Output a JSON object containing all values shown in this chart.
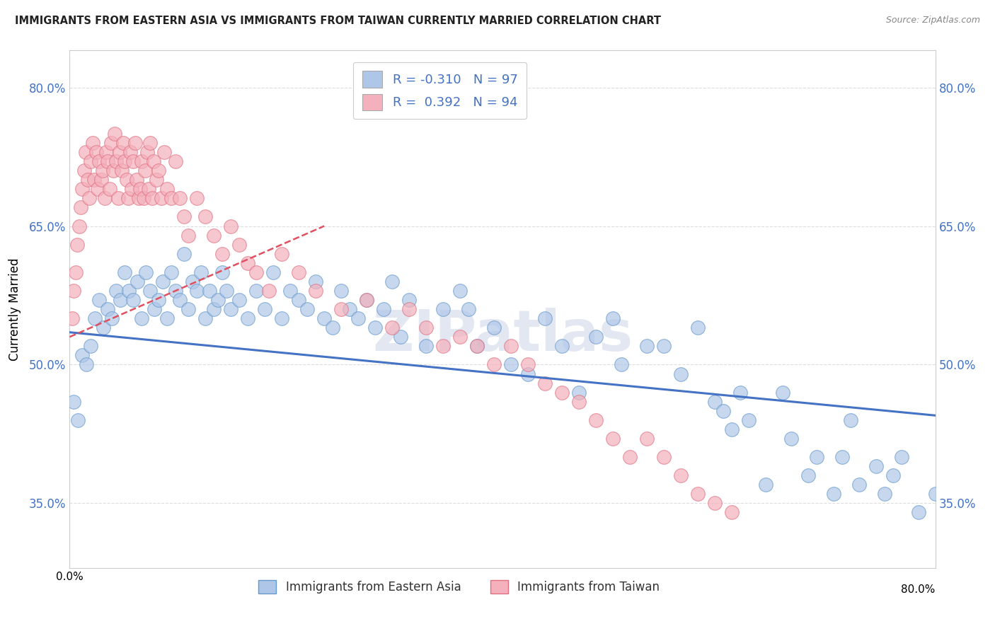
{
  "title": "IMMIGRANTS FROM EASTERN ASIA VS IMMIGRANTS FROM TAIWAN CURRENTLY MARRIED CORRELATION CHART",
  "source_text": "Source: ZipAtlas.com",
  "ylabel": "Currently Married",
  "legend_entries": [
    {
      "color": "#aec6e8",
      "edge_color": "#6699cc",
      "R": "-0.310",
      "N": "97"
    },
    {
      "color": "#f4b0bc",
      "edge_color": "#e07080",
      "R": " 0.392",
      "N": "94"
    }
  ],
  "bottom_legend": [
    "Immigrants from Eastern Asia",
    "Immigrants from Taiwan"
  ],
  "scatter_blue_x": [
    0.5,
    1.0,
    1.5,
    2.0,
    2.5,
    3.0,
    3.5,
    4.0,
    4.5,
    5.0,
    5.5,
    6.0,
    6.5,
    7.0,
    7.5,
    8.0,
    8.5,
    9.0,
    9.5,
    10.0,
    10.5,
    11.0,
    11.5,
    12.0,
    12.5,
    13.0,
    13.5,
    14.0,
    14.5,
    15.0,
    15.5,
    16.0,
    16.5,
    17.0,
    17.5,
    18.0,
    18.5,
    19.0,
    20.0,
    21.0,
    22.0,
    23.0,
    24.0,
    25.0,
    26.0,
    27.0,
    28.0,
    29.0,
    30.0,
    31.0,
    32.0,
    33.0,
    34.0,
    35.0,
    36.0,
    37.0,
    38.0,
    39.0,
    40.0,
    42.0,
    44.0,
    46.0,
    47.0,
    48.0,
    50.0,
    52.0,
    54.0,
    56.0,
    58.0,
    60.0,
    62.0,
    64.0,
    65.0,
    68.0,
    70.0,
    72.0,
    74.0,
    76.0,
    77.0,
    78.0,
    79.0,
    80.0,
    82.0,
    84.0,
    85.0,
    87.0,
    88.0,
    90.0,
    91.0,
    92.0,
    93.0,
    95.0,
    96.0,
    97.0,
    98.0,
    100.0,
    102.0
  ],
  "scatter_blue_y": [
    46,
    44,
    51,
    50,
    52,
    55,
    57,
    54,
    56,
    55,
    58,
    57,
    60,
    58,
    57,
    59,
    55,
    60,
    58,
    56,
    57,
    59,
    55,
    60,
    58,
    57,
    62,
    56,
    59,
    58,
    60,
    55,
    58,
    56,
    57,
    60,
    58,
    56,
    57,
    55,
    58,
    56,
    60,
    55,
    58,
    57,
    56,
    59,
    55,
    54,
    58,
    56,
    55,
    57,
    54,
    56,
    59,
    53,
    57,
    52,
    56,
    58,
    56,
    52,
    54,
    50,
    49,
    55,
    52,
    47,
    53,
    55,
    50,
    52,
    52,
    49,
    54,
    46,
    45,
    43,
    47,
    44,
    37,
    47,
    42,
    38,
    40,
    36,
    40,
    44,
    37,
    39,
    36,
    38,
    40,
    34,
    36
  ],
  "scatter_pink_x": [
    0.3,
    0.5,
    0.7,
    0.9,
    1.1,
    1.3,
    1.5,
    1.7,
    1.9,
    2.1,
    2.3,
    2.5,
    2.7,
    2.9,
    3.1,
    3.3,
    3.5,
    3.7,
    3.9,
    4.1,
    4.3,
    4.5,
    4.7,
    4.9,
    5.1,
    5.3,
    5.5,
    5.7,
    5.9,
    6.1,
    6.3,
    6.5,
    6.7,
    6.9,
    7.1,
    7.3,
    7.5,
    7.7,
    7.9,
    8.1,
    8.3,
    8.5,
    8.7,
    8.9,
    9.1,
    9.3,
    9.5,
    9.7,
    9.9,
    10.2,
    10.5,
    10.8,
    11.1,
    11.5,
    12.0,
    12.5,
    13.0,
    13.5,
    14.0,
    15.0,
    16.0,
    17.0,
    18.0,
    19.0,
    20.0,
    21.0,
    22.0,
    23.5,
    25.0,
    27.0,
    29.0,
    32.0,
    35.0,
    38.0,
    40.0,
    42.0,
    44.0,
    46.0,
    48.0,
    50.0,
    52.0,
    54.0,
    56.0,
    58.0,
    60.0,
    62.0,
    64.0,
    66.0,
    68.0,
    70.0,
    72.0,
    74.0,
    76.0,
    78.0
  ],
  "scatter_pink_y": [
    55,
    58,
    60,
    63,
    65,
    67,
    69,
    71,
    73,
    70,
    68,
    72,
    74,
    70,
    73,
    69,
    72,
    70,
    71,
    68,
    73,
    72,
    69,
    74,
    71,
    75,
    72,
    68,
    73,
    71,
    74,
    72,
    70,
    68,
    73,
    69,
    72,
    74,
    70,
    68,
    69,
    72,
    68,
    71,
    73,
    69,
    74,
    68,
    72,
    70,
    71,
    68,
    73,
    69,
    68,
    72,
    68,
    66,
    64,
    68,
    66,
    64,
    62,
    65,
    63,
    61,
    60,
    58,
    62,
    60,
    58,
    56,
    57,
    54,
    56,
    54,
    52,
    53,
    52,
    50,
    52,
    50,
    48,
    47,
    46,
    44,
    42,
    40,
    42,
    40,
    38,
    36,
    35,
    34
  ],
  "trend_blue_x0": 0,
  "trend_blue_x1": 102,
  "trend_blue_y0": 53.5,
  "trend_blue_y1": 44.5,
  "trend_pink_x0": 0,
  "trend_pink_x1": 30,
  "trend_pink_y0": 53,
  "trend_pink_y1": 65,
  "trend_blue_color": "#4472c4",
  "trend_pink_color": "#e05060",
  "watermark": "ZIPatlas",
  "watermark_color": "#d0d8e8",
  "bg_color": "#ffffff",
  "grid_color": "#dddddd",
  "xlim": [
    0,
    102
  ],
  "ylim": [
    28,
    84
  ],
  "y_tick_positions": [
    35,
    50,
    65,
    80
  ],
  "x_left_label": "0.0%",
  "x_right_label": "80.0%"
}
